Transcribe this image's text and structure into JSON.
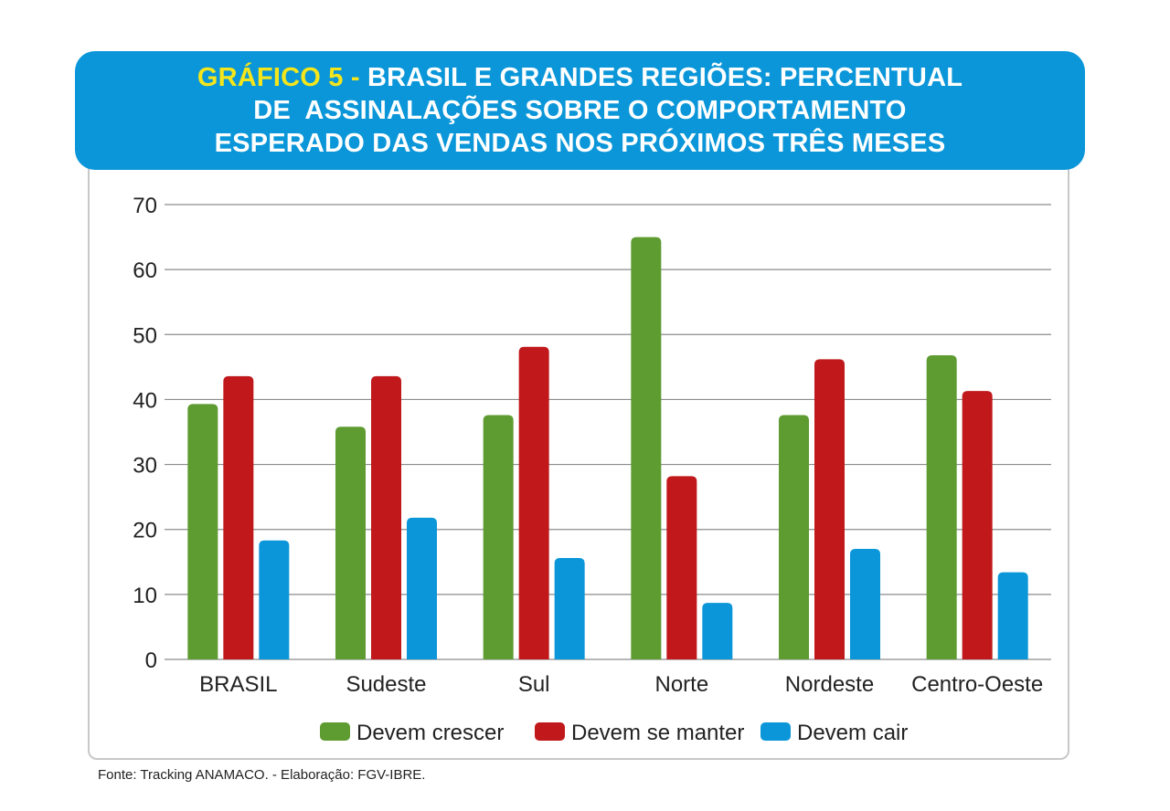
{
  "header": {
    "title_prefix": "GRÁFICO 5 -",
    "title_line1_rest": " BRASIL E GRANDES REGIÕES: PERCENTUAL",
    "title_line2": "DE  ASSINALAÇÕES SOBRE O COMPORTAMENTO",
    "title_line3": "ESPERADO DAS VENDAS NOS PRÓXIMOS TRÊS MESES"
  },
  "chart_data": {
    "type": "bar",
    "title": "GRÁFICO 5 - BRASIL E GRANDES REGIÕES: PERCENTUAL DE  ASSINALAÇÕES SOBRE O COMPORTAMENTO ESPERADO DAS VENDAS NOS PRÓXIMOS TRÊS MESES",
    "categories": [
      "BRASIL",
      "Sudeste",
      "Sul",
      "Norte",
      "Nordeste",
      "Centro-Oeste"
    ],
    "series": [
      {
        "name": "Devem crescer",
        "color": "#5e9b31",
        "values": [
          39.3,
          35.8,
          37.6,
          65.0,
          37.6,
          46.8
        ]
      },
      {
        "name": "Devem se manter",
        "color": "#c0181b",
        "values": [
          43.6,
          43.6,
          48.1,
          28.2,
          46.2,
          41.3
        ]
      },
      {
        "name": "Devem cair",
        "color": "#0a96d8",
        "values": [
          18.3,
          21.8,
          15.6,
          8.7,
          17.0,
          13.4
        ]
      }
    ],
    "yticks": [
      "0",
      "10",
      "20",
      "30",
      "40",
      "50",
      "60",
      "70"
    ],
    "ylim": [
      0,
      70
    ],
    "grid": true,
    "legend": "bottom"
  },
  "source": "Fonte: Tracking ANAMACO. - Elaboração: FGV-IBRE."
}
